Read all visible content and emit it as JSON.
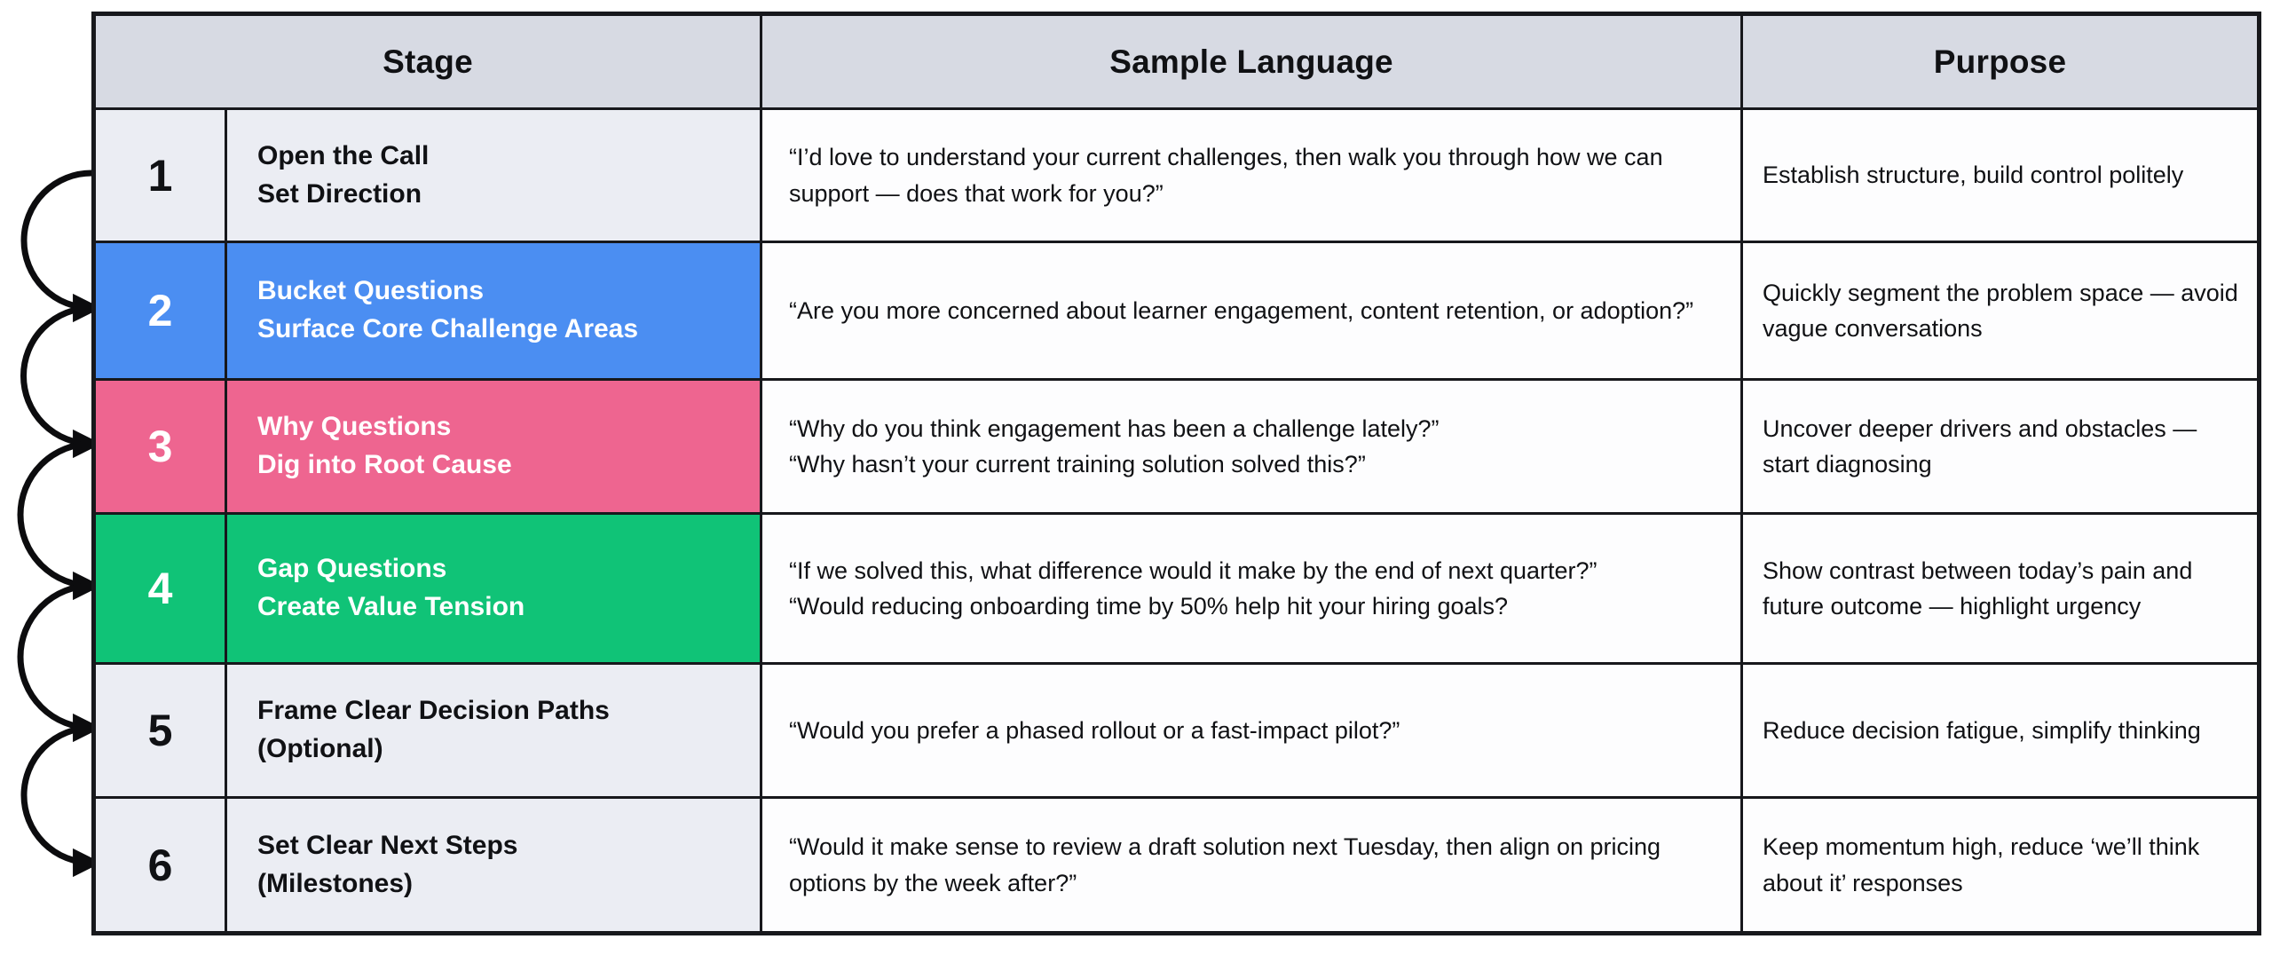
{
  "table": {
    "columns": [
      "Stage",
      "Sample Language",
      "Purpose"
    ],
    "rows": [
      {
        "number": "1",
        "color": "gray",
        "title_lines": [
          "Open the Call",
          "Set Direction"
        ],
        "sample_lines": [
          "“I’d love to understand your current challenges, then walk you through how we can support — does that work for you?”"
        ],
        "purpose": "Establish structure, build control politely"
      },
      {
        "number": "2",
        "color": "blue",
        "title_lines": [
          "Bucket Questions",
          "Surface Core Challenge Areas"
        ],
        "sample_lines": [
          "“Are you more concerned about learner engagement, content retention, or adoption?”"
        ],
        "purpose": "Quickly segment the problem space — avoid vague conversations"
      },
      {
        "number": "3",
        "color": "pink",
        "title_lines": [
          "Why Questions",
          "Dig into Root Cause"
        ],
        "sample_lines": [
          "“Why do you think engagement has been a challenge lately?”",
          "“Why hasn’t your current training solution solved this?”"
        ],
        "purpose": "Uncover deeper drivers and obstacles — start diagnosing"
      },
      {
        "number": "4",
        "color": "green",
        "title_lines": [
          "Gap Questions",
          "Create Value Tension"
        ],
        "sample_lines": [
          "“If we solved this, what difference would it make by the end of next quarter?”",
          "“Would reducing onboarding time by 50% help hit your hiring goals?"
        ],
        "purpose": "Show contrast between today’s pain and future outcome — highlight urgency"
      },
      {
        "number": "5",
        "color": "gray",
        "title_lines": [
          "Frame Clear Decision Paths",
          "(Optional)"
        ],
        "sample_lines": [
          "“Would you prefer a phased rollout or a fast-impact pilot?”"
        ],
        "purpose": "Reduce decision fatigue, simplify thinking"
      },
      {
        "number": "6",
        "color": "gray",
        "title_lines": [
          "Set Clear Next Steps",
          "(Milestones)"
        ],
        "sample_lines": [
          "“Would it make sense to review a draft solution next Tuesday, then align on pricing options by the week after?”"
        ],
        "purpose": "Keep momentum high, reduce ‘we’ll think about it’ responses"
      }
    ]
  },
  "theme": {
    "gray": "#ebedf3",
    "blue": "#4b8ef2",
    "pink": "#ee6590",
    "green": "#10c377",
    "header_bg": "#d7dae3",
    "border": "#17181c",
    "arrow": "#0c0c0e"
  }
}
